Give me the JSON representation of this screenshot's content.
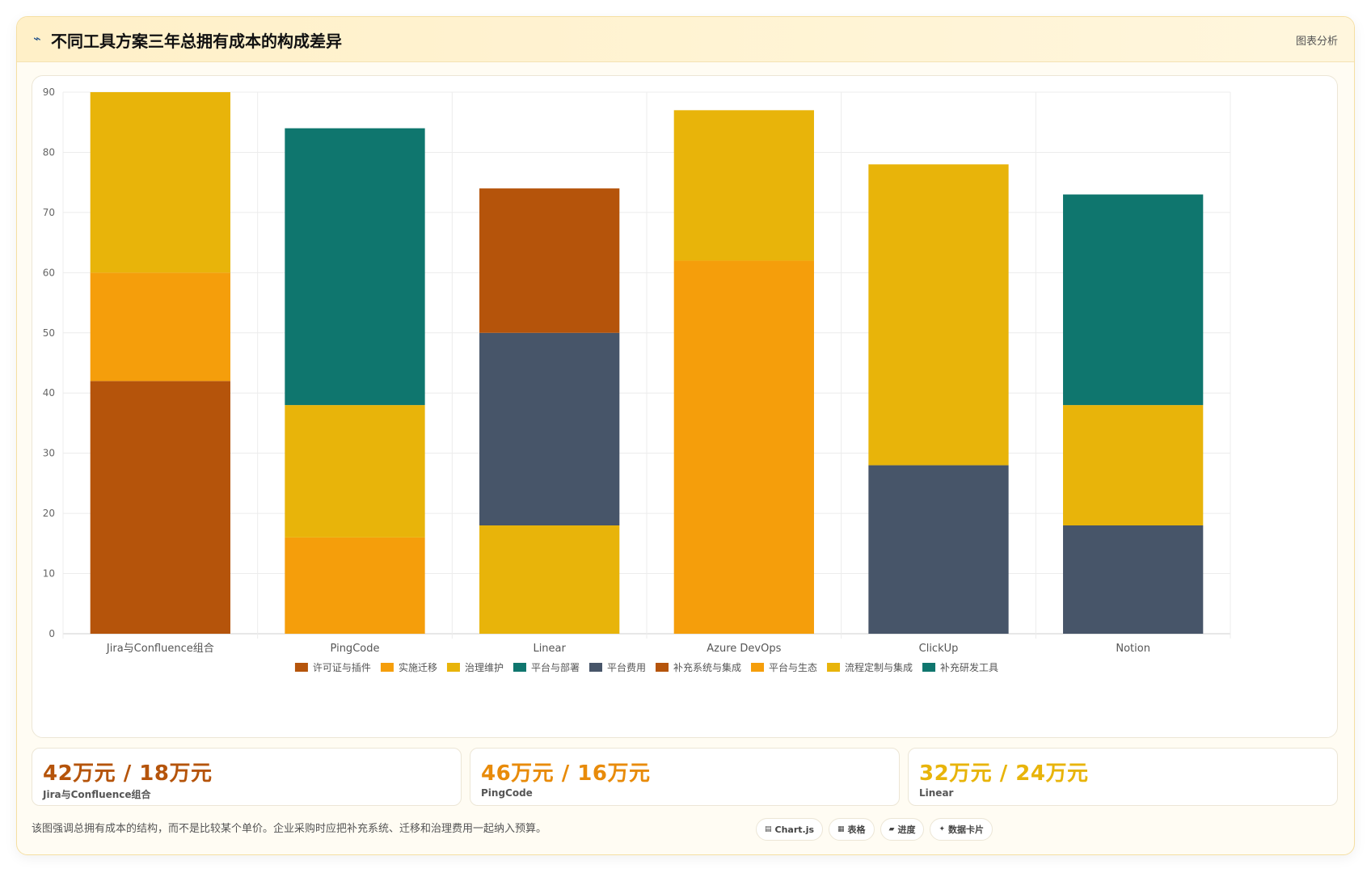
{
  "header": {
    "title_icon": "⌁",
    "title": "不同工具方案三年总拥有成本的构成差异",
    "tag": "图表分析"
  },
  "chart_data": {
    "type": "bar",
    "stacked": true,
    "categories": [
      "Jira与Confluence组合",
      "PingCode",
      "Linear",
      "Azure DevOps",
      "ClickUp",
      "Notion"
    ],
    "ylim": [
      0,
      90
    ],
    "yticks": [
      0,
      10,
      20,
      30,
      40,
      50,
      60,
      70,
      80,
      90
    ],
    "legend_position": "bottom",
    "grid": true,
    "series": [
      {
        "name": "许可证与插件",
        "color": "#b5540b",
        "values": [
          42,
          null,
          null,
          null,
          null,
          null
        ]
      },
      {
        "name": "实施迁移",
        "color": "#f59e0b",
        "values": [
          18,
          16,
          null,
          null,
          null,
          null
        ]
      },
      {
        "name": "治理维护",
        "color": "#e8b40a",
        "values": [
          30,
          22,
          18,
          null,
          null,
          null
        ]
      },
      {
        "name": "平台与部署",
        "color": "#0f766e",
        "values": [
          null,
          46,
          null,
          null,
          null,
          null
        ]
      },
      {
        "name": "平台费用",
        "color": "#475569",
        "values": [
          null,
          null,
          32,
          null,
          28,
          18
        ]
      },
      {
        "name": "补充系统与集成",
        "color": "#b5540b",
        "values": [
          null,
          null,
          24,
          null,
          null,
          null
        ]
      },
      {
        "name": "平台与生态",
        "color": "#f59e0b",
        "values": [
          null,
          null,
          null,
          62,
          null,
          null
        ]
      },
      {
        "name": "流程定制与集成",
        "color": "#e8b40a",
        "values": [
          null,
          null,
          null,
          25,
          50,
          20
        ]
      },
      {
        "name": "补充研发工具",
        "color": "#0f766e",
        "values": [
          null,
          null,
          null,
          null,
          null,
          35
        ]
      }
    ]
  },
  "stats": [
    {
      "value": "42万元 / 18万元",
      "label": "Jira与Confluence组合",
      "color": "#b5540b"
    },
    {
      "value": "46万元 / 16万元",
      "label": "PingCode",
      "color": "#e88b0a"
    },
    {
      "value": "32万元 / 24万元",
      "label": "Linear",
      "color": "#e8b40a"
    }
  ],
  "footnote": "该图强调总拥有成本的结构，而不是比较某个单价。企业采购时应把补充系统、迁移和治理费用一起纳入预算。",
  "chips": [
    {
      "icon": "▤",
      "label": "Chart.js"
    },
    {
      "icon": "▦",
      "label": "表格"
    },
    {
      "icon": "▰",
      "label": "进度"
    },
    {
      "icon": "✦",
      "label": "数据卡片"
    }
  ]
}
